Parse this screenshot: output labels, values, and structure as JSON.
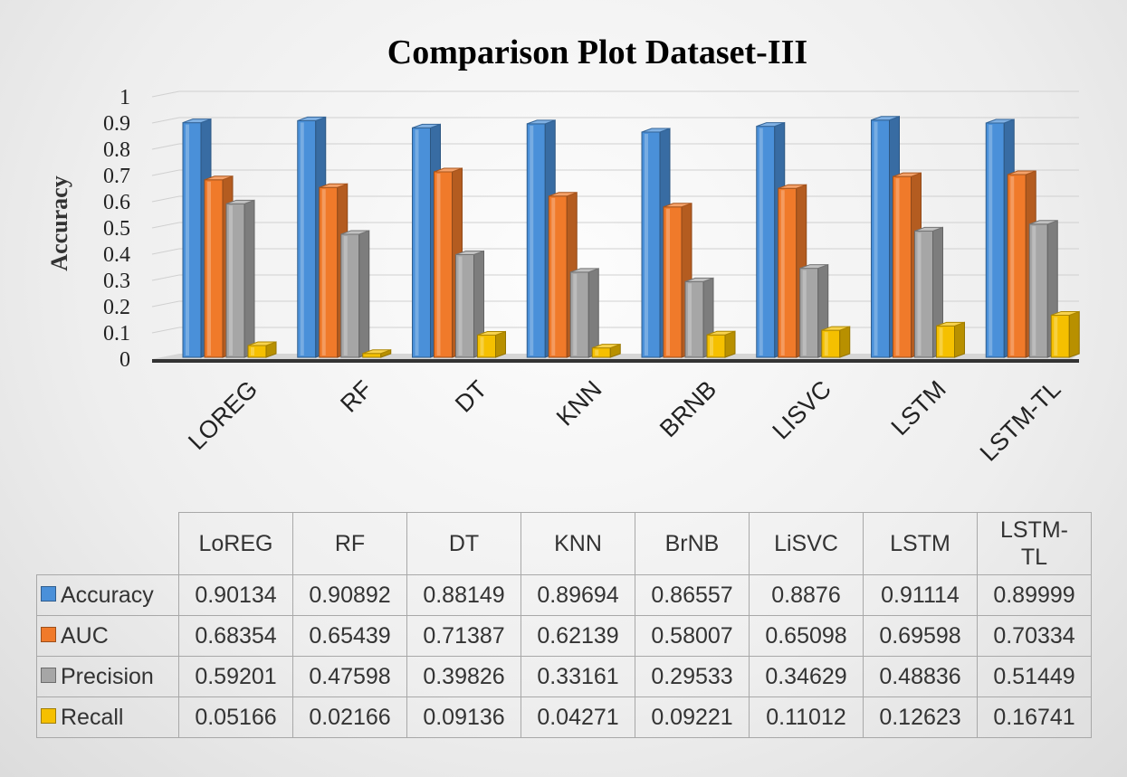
{
  "chart_data": {
    "type": "bar",
    "title": "Comparison Plot Dataset-III",
    "ylabel": "Accuracy",
    "ylim": [
      0,
      1
    ],
    "yticks": [
      "0",
      "0.1",
      "0.2",
      "0.3",
      "0.4",
      "0.5",
      "0.6",
      "0.7",
      "0.8",
      "0.9",
      "1"
    ],
    "grid": true,
    "categories": [
      "LOREG",
      "RF",
      "DT",
      "KNN",
      "BRNB",
      "LISVC",
      "LSTM",
      "LSTM-TL"
    ],
    "series": [
      {
        "name": "Accuracy",
        "color": "#4a90d9",
        "values": [
          0.90134,
          0.90892,
          0.88149,
          0.89694,
          0.86557,
          0.8876,
          0.91114,
          0.89999
        ]
      },
      {
        "name": "AUC",
        "color": "#f07a2a",
        "values": [
          0.68354,
          0.65439,
          0.71387,
          0.62139,
          0.58007,
          0.65098,
          0.69598,
          0.70334
        ]
      },
      {
        "name": "Precision",
        "color": "#a6a6a6",
        "values": [
          0.59201,
          0.47598,
          0.39826,
          0.33161,
          0.29533,
          0.34629,
          0.48836,
          0.51449
        ]
      },
      {
        "name": "Recall",
        "color": "#f5c000",
        "values": [
          0.05166,
          0.02166,
          0.09136,
          0.04271,
          0.09221,
          0.11012,
          0.12623,
          0.16741
        ]
      }
    ]
  },
  "table": {
    "headers": [
      "LoREG",
      "RF",
      "DT",
      "KNN",
      "BrNB",
      "LiSVC",
      "LSTM",
      "LSTM-\nTL"
    ],
    "rows": [
      {
        "label": "Accuracy",
        "color": "#4a90d9",
        "values": [
          "0.90134",
          "0.90892",
          "0.88149",
          "0.89694",
          "0.86557",
          "0.8876",
          "0.91114",
          "0.89999"
        ]
      },
      {
        "label": "AUC",
        "color": "#f07a2a",
        "values": [
          "0.68354",
          "0.65439",
          "0.71387",
          "0.62139",
          "0.58007",
          "0.65098",
          "0.69598",
          "0.70334"
        ]
      },
      {
        "label": "Precision",
        "color": "#a6a6a6",
        "values": [
          "0.59201",
          "0.47598",
          "0.39826",
          "0.33161",
          "0.29533",
          "0.34629",
          "0.48836",
          "0.51449"
        ]
      },
      {
        "label": "Recall",
        "color": "#f5c000",
        "values": [
          "0.05166",
          "0.02166",
          "0.09136",
          "0.04271",
          "0.09221",
          "0.11012",
          "0.12623",
          "0.16741"
        ]
      }
    ]
  }
}
